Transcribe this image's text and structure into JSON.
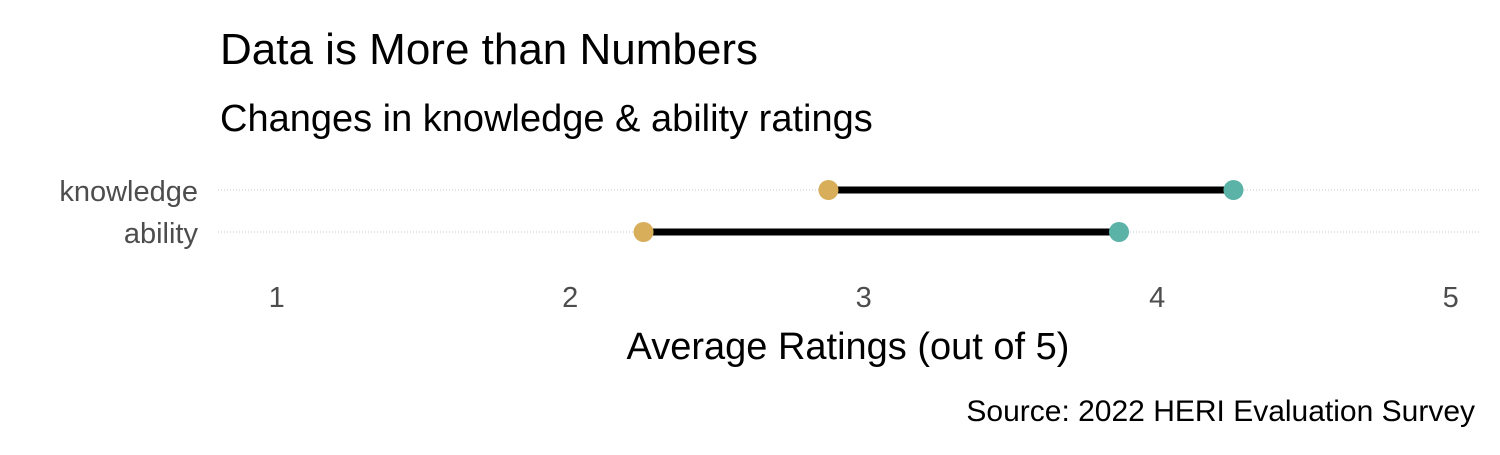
{
  "chart_data": {
    "type": "dumbbell",
    "title": "Data is More than Numbers",
    "subtitle": "Changes in knowledge & ability ratings",
    "xlabel": "Average Ratings (out of 5)",
    "ylabel": "",
    "caption": "Source: 2022 HERI Evaluation Survey",
    "xlim": [
      0.8,
      5.1
    ],
    "xticks": [
      1,
      2,
      3,
      4,
      5
    ],
    "xtick_labels": [
      "1",
      "2",
      "3",
      "4",
      "5"
    ],
    "categories": [
      "knowledge",
      "ability"
    ],
    "series": [
      {
        "values": [
          2.88,
          2.25
        ],
        "color": "#D8AE5A"
      },
      {
        "values": [
          4.26,
          3.87
        ],
        "color": "#5BB3A7"
      }
    ],
    "segment_color": "#000000",
    "grid": "dotted horizontal guide lines for categories only",
    "legend": "none"
  }
}
